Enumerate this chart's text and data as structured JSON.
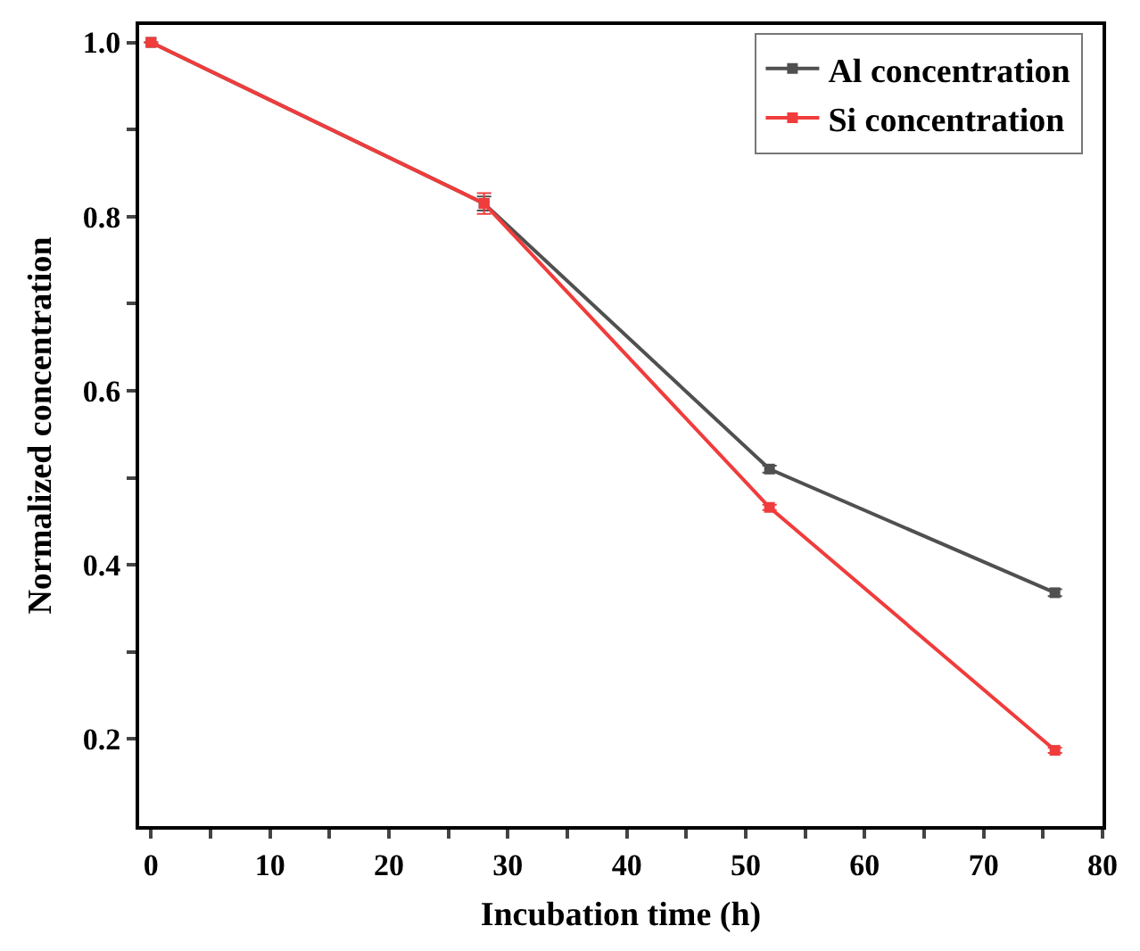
{
  "chart_data": {
    "type": "line",
    "xlabel": "Incubation time (h)",
    "ylabel": "Normalized concentration",
    "x": [
      0,
      28,
      52,
      76
    ],
    "series": [
      {
        "name": "Al concentration",
        "color": "#505050",
        "values": [
          1.0,
          0.815,
          0.51,
          0.368
        ],
        "errors": [
          null,
          0.008,
          0.004,
          0.004
        ]
      },
      {
        "name": "Si concentration",
        "color": "#f03c3c",
        "values": [
          1.0,
          0.815,
          0.466,
          0.187
        ],
        "errors": [
          null,
          0.012,
          0.003,
          0.003
        ]
      }
    ],
    "xlim": [
      -1,
      80
    ],
    "ylim": [
      0.1,
      1.02
    ],
    "xticks": [
      0,
      {
        "value": 5,
        "label": null
      },
      10,
      {
        "value": 15,
        "label": null
      },
      20,
      {
        "value": 25,
        "label": null
      },
      30,
      {
        "value": 35,
        "label": null
      },
      40,
      {
        "value": 45,
        "label": null
      },
      50,
      {
        "value": 55,
        "label": null
      },
      60,
      {
        "value": 65,
        "label": null
      },
      70,
      {
        "value": 75,
        "label": null
      },
      80
    ],
    "yticks": [
      {
        "value": 0.2,
        "label": "0.2"
      },
      {
        "value": 0.3,
        "label": null
      },
      {
        "value": 0.4,
        "label": "0.4"
      },
      {
        "value": 0.5,
        "label": null
      },
      {
        "value": 0.6,
        "label": "0.6"
      },
      {
        "value": 0.7,
        "label": null
      },
      {
        "value": 0.8,
        "label": "0.8"
      },
      {
        "value": 0.9,
        "label": null
      },
      {
        "value": 1.0,
        "label": "1.0"
      }
    ],
    "grid": false,
    "legend": "top right",
    "marker": "square",
    "line_style": "solid"
  }
}
